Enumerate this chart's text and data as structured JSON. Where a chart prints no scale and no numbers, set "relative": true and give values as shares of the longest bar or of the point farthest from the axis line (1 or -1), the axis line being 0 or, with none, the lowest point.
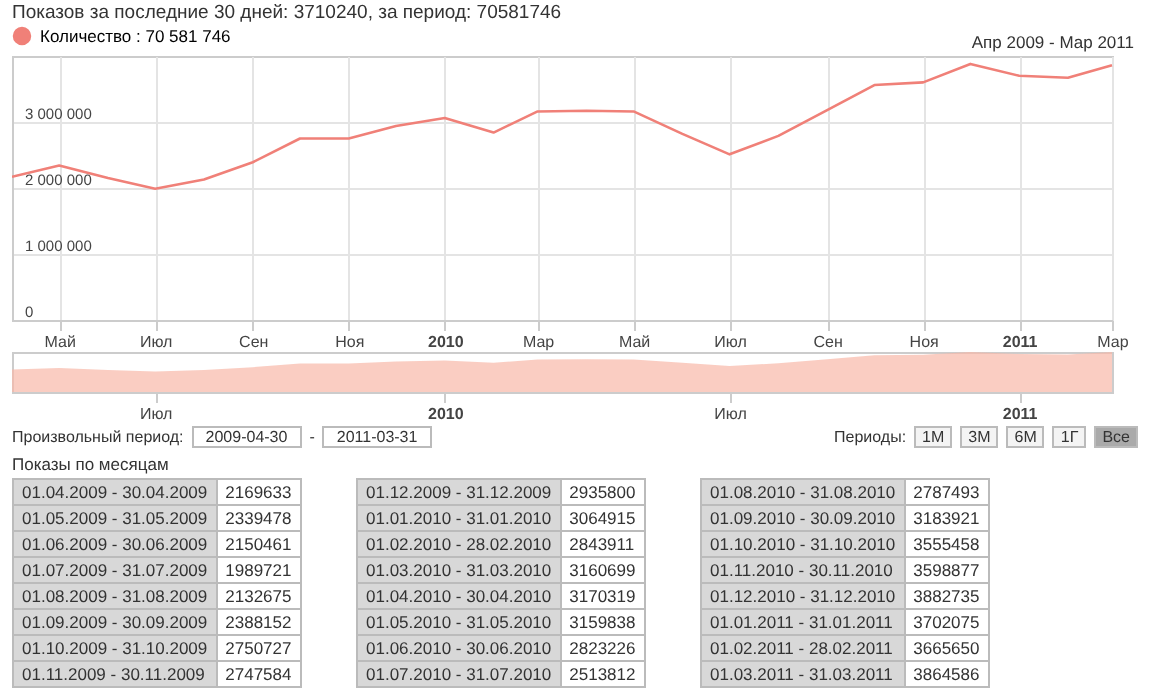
{
  "chart_data": [
    {
      "type": "line",
      "title": "Показов за последние 30 дней: 3710240, за период: 70581746",
      "subtitle": "Апр 2009 - Мар 2011",
      "x": [
        "2009-04",
        "2009-05",
        "2009-06",
        "2009-07",
        "2009-08",
        "2009-09",
        "2009-10",
        "2009-11",
        "2009-12",
        "2010-01",
        "2010-02",
        "2010-03",
        "2010-04",
        "2010-05",
        "2010-06",
        "2010-07",
        "2010-08",
        "2010-09",
        "2010-10",
        "2010-11",
        "2010-12",
        "2011-01",
        "2011-02",
        "2011-03"
      ],
      "series": [
        {
          "name": "Количество : 70 581 746",
          "color": "#f08078",
          "values": [
            2170000,
            2340000,
            2150000,
            1990000,
            2130000,
            2390000,
            2750000,
            2750000,
            2940000,
            3060000,
            2840000,
            3160000,
            3170000,
            3160000,
            2820000,
            2510000,
            2790000,
            3180000,
            3560000,
            3600000,
            3880000,
            3700000,
            3670000,
            3860000
          ]
        }
      ],
      "xlim": [
        "2009-04",
        "2011-03"
      ],
      "xticks": [
        {
          "value": "2009-05",
          "label": "Май"
        },
        {
          "value": "2009-07",
          "label": "Июл"
        },
        {
          "value": "2009-09",
          "label": "Сен"
        },
        {
          "value": "2009-11",
          "label": "Ноя"
        },
        {
          "value": "2010-01",
          "label": "2010"
        },
        {
          "value": "2010-03",
          "label": "Мар"
        },
        {
          "value": "2010-05",
          "label": "Май"
        },
        {
          "value": "2010-07",
          "label": "Июл"
        },
        {
          "value": "2010-09",
          "label": "Сен"
        },
        {
          "value": "2010-11",
          "label": "Ноя"
        },
        {
          "value": "2011-01",
          "label": "2011"
        },
        {
          "value": "2011-03",
          "label": "Мар"
        }
      ],
      "ylim": [
        0,
        4000000
      ],
      "yticks": [
        0,
        {
          "value": 1000000,
          "label": "1 000 000"
        },
        {
          "value": 2000000,
          "label": "2 000 000"
        },
        {
          "value": 3000000,
          "label": "3 000 000"
        }
      ],
      "grid": true,
      "legend": "top left",
      "annotations": [
        "Произвольный период:",
        "2009-04-30",
        "-",
        "2011-03-31",
        "Периоды:",
        "1M",
        "3M",
        "6M",
        "1Г",
        "Все"
      ]
    },
    {
      "type": "area",
      "x": [
        "2009-04",
        "2009-05",
        "2009-06",
        "2009-07",
        "2009-08",
        "2009-09",
        "2009-10",
        "2009-11",
        "2009-12",
        "2010-01",
        "2010-02",
        "2010-03",
        "2010-04",
        "2010-05",
        "2010-06",
        "2010-07",
        "2010-08",
        "2010-09",
        "2010-10",
        "2010-11",
        "2010-12",
        "2011-01",
        "2011-02",
        "2011-03"
      ],
      "series": [
        {
          "color": "#f8b8a8",
          "values": [
            0.56,
            0.6,
            0.55,
            0.51,
            0.55,
            0.62,
            0.71,
            0.71,
            0.76,
            0.79,
            0.73,
            0.81,
            0.82,
            0.81,
            0.73,
            0.65,
            0.72,
            0.82,
            0.92,
            0.93,
            1,
            0.95,
            0.94,
            1
          ]
        }
      ],
      "relative": true,
      "xlim": [
        "2009-04",
        "2011-03"
      ],
      "xticks": [
        {
          "value": "2009-07",
          "label": "Июл"
        },
        {
          "value": "2010-01",
          "label": "2010"
        },
        {
          "value": "2010-07",
          "label": "Июл"
        },
        {
          "value": "2011-01",
          "label": "2011"
        }
      ]
    },
    {
      "type": "other",
      "title": "Показы по месяцам",
      "categories": [
        "01.04.2009 - 30.04.2009",
        "01.05.2009 - 31.05.2009",
        "01.06.2009 - 30.06.2009",
        "01.07.2009 - 31.07.2009",
        "01.08.2009 - 31.08.2009",
        "01.09.2009 - 30.09.2009",
        "01.10.2009 - 31.10.2009",
        "01.11.2009 - 30.11.2009",
        "01.12.2009 - 31.12.2009",
        "01.01.2010 - 31.01.2010",
        "01.02.2010 - 28.02.2010",
        "01.03.2010 - 31.03.2010",
        "01.04.2010 - 30.04.2010",
        "01.05.2010 - 31.05.2010",
        "01.06.2010 - 30.06.2010",
        "01.07.2010 - 31.07.2010",
        "01.08.2010 - 31.08.2010",
        "01.09.2010 - 30.09.2010",
        "01.10.2010 - 31.10.2010",
        "01.11.2010 - 30.11.2010",
        "01.12.2010 - 31.12.2010",
        "01.01.2011 - 31.01.2011",
        "01.02.2011 - 28.02.2011",
        "01.03.2011 - 31.03.2011"
      ],
      "values": [
        2169633,
        2339478,
        2150461,
        1989721,
        2132675,
        2388152,
        2750727,
        2747584,
        2935800,
        3064915,
        2843911,
        3160699,
        3170319,
        3159838,
        2823226,
        2513812,
        2787493,
        3183921,
        3555458,
        3598877,
        3882735,
        3702075,
        3665650,
        3864586
      ],
      "data_labels": true
    }
  ]
}
